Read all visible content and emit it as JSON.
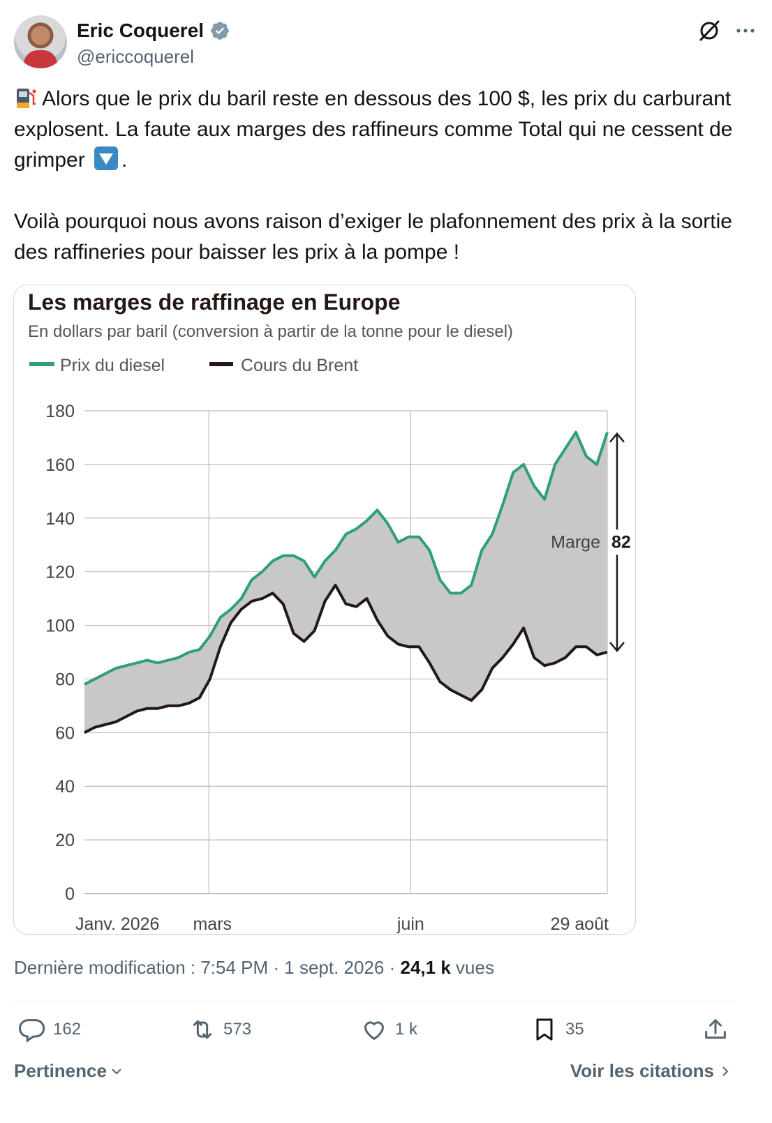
{
  "author": {
    "name": "Eric Coquerel",
    "handle": "@ericcoquerel"
  },
  "tweet": {
    "line1": "Alors que le prix du baril reste en dessous des 100 $, les prix du carburant explosent. La faute aux marges des raffineurs comme Total qui ne cessent de grimper",
    "line1_end": ".",
    "paragraph2": "Voilà pourquoi nous avons raison d’exiger le plafonnement des prix à la sortie des raffineries pour baisser les prix à la pompe !"
  },
  "icons": {
    "verified": "verified-badge-icon",
    "grok": "grok-icon",
    "more": "more-icon",
    "pump": "fuel-pump-emoji",
    "down": "down-arrow-emoji"
  },
  "colors": {
    "diesel": "#2e9e7c",
    "brent": "#231815",
    "fill": "#c8c8c8",
    "accent": "#1d9bf0"
  },
  "chart_data": {
    "type": "line",
    "title": "Les marges de raffinage en Europe",
    "subtitle": "En dollars par baril (conversion à partir de la tonne pour le diesel)",
    "ylim": [
      0,
      180
    ],
    "yticks": [
      "0",
      "20",
      "40",
      "60",
      "80",
      "100",
      "120",
      "140",
      "160",
      "180"
    ],
    "xticks": [
      {
        "label": "Janv. 2026",
        "x": 0
      },
      {
        "label": "mars",
        "x": 0.238
      },
      {
        "label": "juin",
        "x": 0.624
      },
      {
        "label": "29 août",
        "x": 1
      }
    ],
    "x": [
      0,
      0.02,
      0.04,
      0.06,
      0.08,
      0.1,
      0.12,
      0.14,
      0.16,
      0.18,
      0.2,
      0.22,
      0.24,
      0.26,
      0.28,
      0.3,
      0.32,
      0.34,
      0.36,
      0.38,
      0.4,
      0.42,
      0.44,
      0.46,
      0.48,
      0.5,
      0.52,
      0.54,
      0.56,
      0.58,
      0.6,
      0.62,
      0.64,
      0.66,
      0.68,
      0.7,
      0.72,
      0.74,
      0.76,
      0.78,
      0.8,
      0.82,
      0.84,
      0.86,
      0.88,
      0.9,
      0.92,
      0.94,
      0.96,
      0.98,
      1
    ],
    "series": [
      {
        "name": "Prix du diesel",
        "values": [
          78,
          80,
          82,
          84,
          85,
          86,
          87,
          86,
          87,
          88,
          90,
          91,
          96,
          103,
          106,
          110,
          117,
          120,
          124,
          126,
          126,
          124,
          118,
          124,
          128,
          134,
          136,
          139,
          143,
          138,
          131,
          133,
          133,
          128,
          117,
          112,
          112,
          115,
          128,
          134,
          145,
          157,
          160,
          152,
          147,
          160,
          166,
          172,
          163,
          160,
          172
        ]
      },
      {
        "name": "Cours du Brent",
        "values": [
          60,
          62,
          63,
          64,
          66,
          68,
          69,
          69,
          70,
          70,
          71,
          73,
          80,
          92,
          101,
          106,
          109,
          110,
          112,
          108,
          97,
          94,
          98,
          109,
          115,
          108,
          107,
          110,
          102,
          96,
          93,
          92,
          92,
          86,
          79,
          76,
          74,
          72,
          76,
          84,
          88,
          93,
          99,
          88,
          85,
          86,
          88,
          92,
          92,
          89,
          90
        ]
      }
    ],
    "annotation": {
      "label": "Marge",
      "value": "82"
    },
    "grid": true,
    "legend": "top-left"
  },
  "meta": {
    "prefix": "Dernière modification : 7:54 PM · 1 sept. 2026 · ",
    "views": "24,1 k",
    "views_label": " vues"
  },
  "actions": {
    "replies": "162",
    "reposts": "573",
    "likes": "1 k",
    "bookmarks": "35"
  },
  "footer": {
    "sort": "Pertinence",
    "quotes": "Voir les citations"
  }
}
